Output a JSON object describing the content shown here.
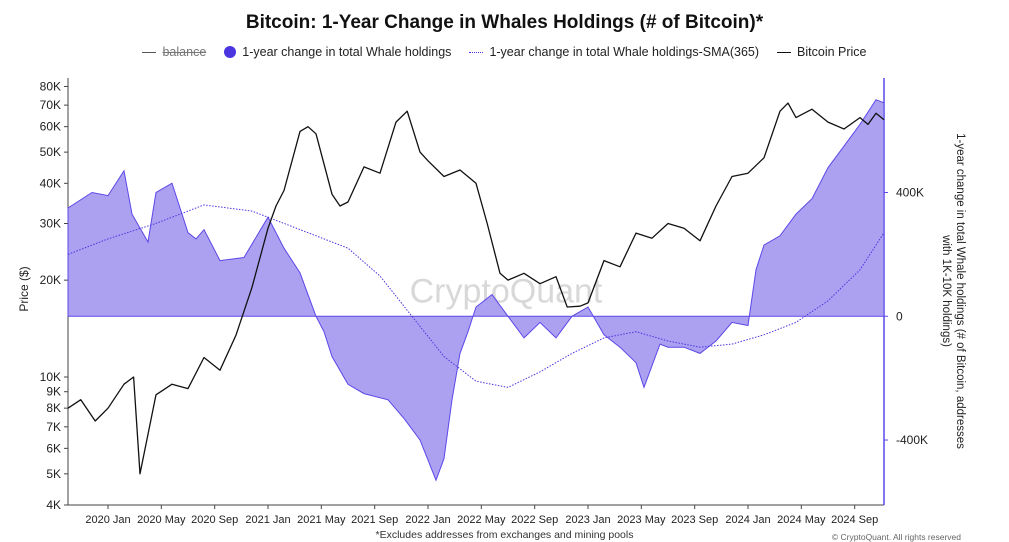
{
  "chart_data": {
    "type": "line",
    "title": "Bitcoin: 1-Year Change in Whales Holdings (# of Bitcoin)*",
    "legend": [
      {
        "key": "balance",
        "label": "balance",
        "hidden": true
      },
      {
        "key": "change",
        "label": "1-year change in total Whale holdings"
      },
      {
        "key": "sma",
        "label": "1-year change in total Whale holdings-SMA(365)"
      },
      {
        "key": "price",
        "label": "Bitcoin Price"
      }
    ],
    "x_ticks": [
      "2020 Jan",
      "2020 May",
      "2020 Sep",
      "2021 Jan",
      "2021 May",
      "2021 Sep",
      "2022 Jan",
      "2022 May",
      "2022 Sep",
      "2023 Jan",
      "2023 May",
      "2023 Sep",
      "2024 Jan",
      "2024 May",
      "2024 Sep"
    ],
    "x_range": [
      2019.75,
      2024.85
    ],
    "left_axis": {
      "label": "Price ($)",
      "scale": "log",
      "range": [
        4000,
        85000
      ],
      "ticks": [
        {
          "v": 80000,
          "t": "80K"
        },
        {
          "v": 70000,
          "t": "70K"
        },
        {
          "v": 60000,
          "t": "60K"
        },
        {
          "v": 50000,
          "t": "50K"
        },
        {
          "v": 40000,
          "t": "40K"
        },
        {
          "v": 30000,
          "t": "30K"
        },
        {
          "v": 20000,
          "t": "20K"
        },
        {
          "v": 10000,
          "t": "10K"
        },
        {
          "v": 9000,
          "t": "9K"
        },
        {
          "v": 8000,
          "t": "8K"
        },
        {
          "v": 7000,
          "t": "7K"
        },
        {
          "v": 6000,
          "t": "6K"
        },
        {
          "v": 5000,
          "t": "5K"
        },
        {
          "v": 4000,
          "t": "4K"
        }
      ]
    },
    "right_axis": {
      "label": "1-year change in total Whale holdings (# of Bitcoin, addresses with 1K-10K holdings)",
      "range": [
        -610000,
        770000
      ],
      "ticks": [
        {
          "v": 400000,
          "t": "400K"
        },
        {
          "v": 0,
          "t": "0"
        },
        {
          "v": -400000,
          "t": "-400K"
        }
      ]
    },
    "series": [
      {
        "name": "Bitcoin Price",
        "axis": "left",
        "x": [
          2019.75,
          2019.83,
          2019.92,
          2020.0,
          2020.1,
          2020.16,
          2020.2,
          2020.3,
          2020.4,
          2020.5,
          2020.6,
          2020.7,
          2020.8,
          2020.9,
          2021.0,
          2021.05,
          2021.1,
          2021.2,
          2021.25,
          2021.3,
          2021.4,
          2021.45,
          2021.5,
          2021.6,
          2021.7,
          2021.8,
          2021.87,
          2021.95,
          2022.0,
          2022.1,
          2022.2,
          2022.3,
          2022.37,
          2022.45,
          2022.5,
          2022.6,
          2022.7,
          2022.8,
          2022.87,
          2022.95,
          2023.0,
          2023.1,
          2023.2,
          2023.3,
          2023.4,
          2023.5,
          2023.6,
          2023.7,
          2023.8,
          2023.9,
          2024.0,
          2024.1,
          2024.2,
          2024.25,
          2024.3,
          2024.4,
          2024.5,
          2024.6,
          2024.7,
          2024.75,
          2024.8,
          2024.85
        ],
        "values": [
          8000,
          8500,
          7300,
          8000,
          9500,
          10000,
          5000,
          8800,
          9500,
          9200,
          11500,
          10500,
          13500,
          19000,
          29000,
          34000,
          38000,
          58000,
          60000,
          57000,
          37000,
          34000,
          35000,
          45000,
          43000,
          62000,
          67000,
          50000,
          47000,
          42000,
          44000,
          40000,
          30000,
          21000,
          20000,
          21000,
          19500,
          20500,
          16500,
          16600,
          17000,
          23000,
          22000,
          28000,
          27000,
          30000,
          29000,
          26500,
          34000,
          42000,
          43000,
          48000,
          67000,
          71000,
          64000,
          68000,
          62000,
          59000,
          64000,
          61000,
          66000,
          63000
        ]
      },
      {
        "name": "1-year change in total Whale holdings",
        "axis": "right",
        "x": [
          2019.75,
          2019.9,
          2020.0,
          2020.1,
          2020.15,
          2020.25,
          2020.3,
          2020.4,
          2020.5,
          2020.55,
          2020.6,
          2020.7,
          2020.85,
          2021.0,
          2021.1,
          2021.2,
          2021.3,
          2021.35,
          2021.4,
          2021.5,
          2021.6,
          2021.75,
          2021.85,
          2021.95,
          2022.05,
          2022.1,
          2022.15,
          2022.2,
          2022.25,
          2022.3,
          2022.4,
          2022.5,
          2022.6,
          2022.7,
          2022.8,
          2022.9,
          2023.0,
          2023.1,
          2023.2,
          2023.3,
          2023.35,
          2023.45,
          2023.5,
          2023.6,
          2023.7,
          2023.8,
          2023.9,
          2024.0,
          2024.05,
          2024.1,
          2024.2,
          2024.3,
          2024.4,
          2024.5,
          2024.6,
          2024.7,
          2024.8,
          2024.85
        ],
        "values": [
          350000,
          400000,
          390000,
          470000,
          330000,
          240000,
          400000,
          430000,
          270000,
          250000,
          280000,
          180000,
          190000,
          320000,
          220000,
          140000,
          0,
          -50000,
          -130000,
          -220000,
          -250000,
          -270000,
          -330000,
          -400000,
          -530000,
          -460000,
          -270000,
          -120000,
          -50000,
          30000,
          70000,
          0,
          -70000,
          -20000,
          -70000,
          0,
          30000,
          -60000,
          -100000,
          -150000,
          -230000,
          -90000,
          -100000,
          -100000,
          -120000,
          -80000,
          -20000,
          -30000,
          150000,
          230000,
          260000,
          330000,
          380000,
          480000,
          550000,
          620000,
          700000,
          690000
        ]
      },
      {
        "name": "1-year change in total Whale holdings-SMA(365)",
        "axis": "right",
        "x": [
          2019.75,
          2020.0,
          2020.3,
          2020.6,
          2020.9,
          2021.1,
          2021.3,
          2021.5,
          2021.7,
          2021.9,
          2022.1,
          2022.3,
          2022.5,
          2022.7,
          2022.9,
          2023.1,
          2023.3,
          2023.5,
          2023.7,
          2023.9,
          2024.1,
          2024.3,
          2024.5,
          2024.7,
          2024.85
        ],
        "values": [
          200000,
          250000,
          300000,
          360000,
          340000,
          300000,
          260000,
          220000,
          130000,
          0,
          -130000,
          -210000,
          -230000,
          -180000,
          -120000,
          -70000,
          -50000,
          -80000,
          -100000,
          -90000,
          -60000,
          -20000,
          50000,
          150000,
          270000
        ]
      }
    ],
    "watermark": "CryptoQuant",
    "footnote": "*Excludes addresses from exchanges and mining pools",
    "credit": "© CryptoQuant. All rights reserved"
  }
}
